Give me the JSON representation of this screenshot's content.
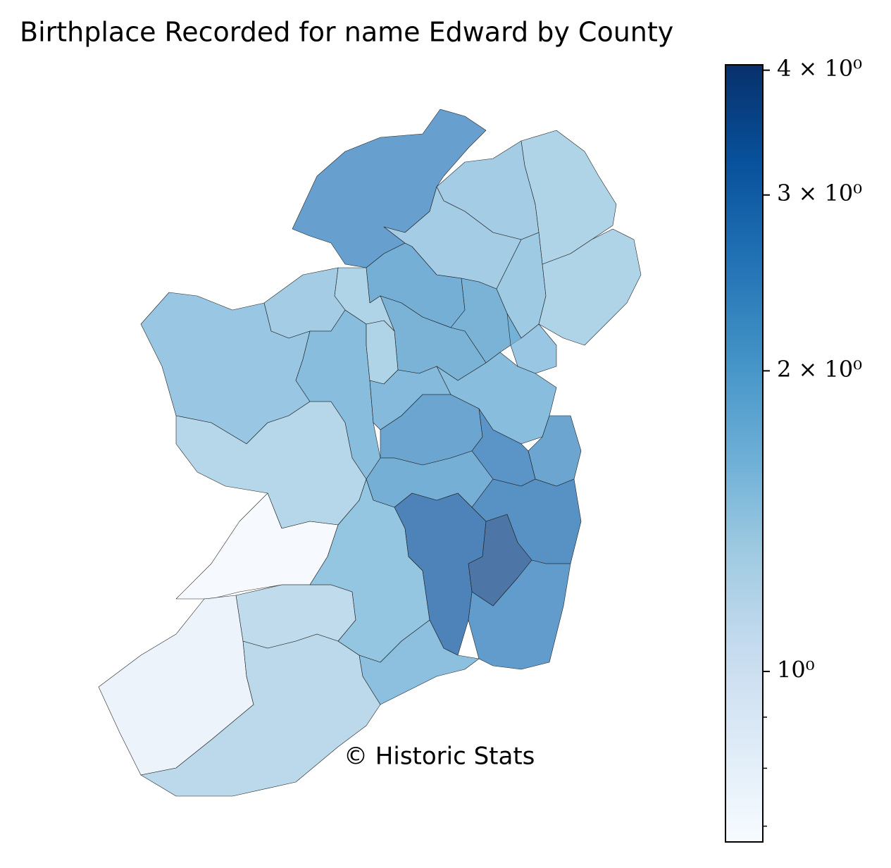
{
  "chart_data": {
    "type": "choropleth",
    "title": "Birthplace Recorded for name Edward by County",
    "annotation": "© Historic Stats",
    "colormap": "Blues",
    "log_scale": true,
    "values": [
      2.4,
      1.5,
      1.4,
      1.5,
      2.1,
      1.55,
      1.4,
      2.0,
      2.0,
      1.4,
      1.5,
      1.6,
      1.8,
      1.4,
      1.85,
      1.6,
      1.8,
      2.3,
      2.7,
      2.3,
      2.1,
      1.35,
      0.7,
      1.25,
      0.8,
      1.3,
      1.65,
      1.75,
      3.2,
      3.6,
      2.8,
      2.5
    ],
    "ylim": [
      0.675,
      4.05
    ],
    "yticks": [
      {
        "value": 1,
        "label": "10⁰"
      },
      {
        "value": 2,
        "label": "2 × 10⁰"
      },
      {
        "value": 3,
        "label": "3 × 10⁰"
      },
      {
        "value": 4,
        "label": "4 × 10⁰"
      }
    ],
    "minor_yticks": [
      0.7,
      0.8,
      0.9
    ]
  }
}
